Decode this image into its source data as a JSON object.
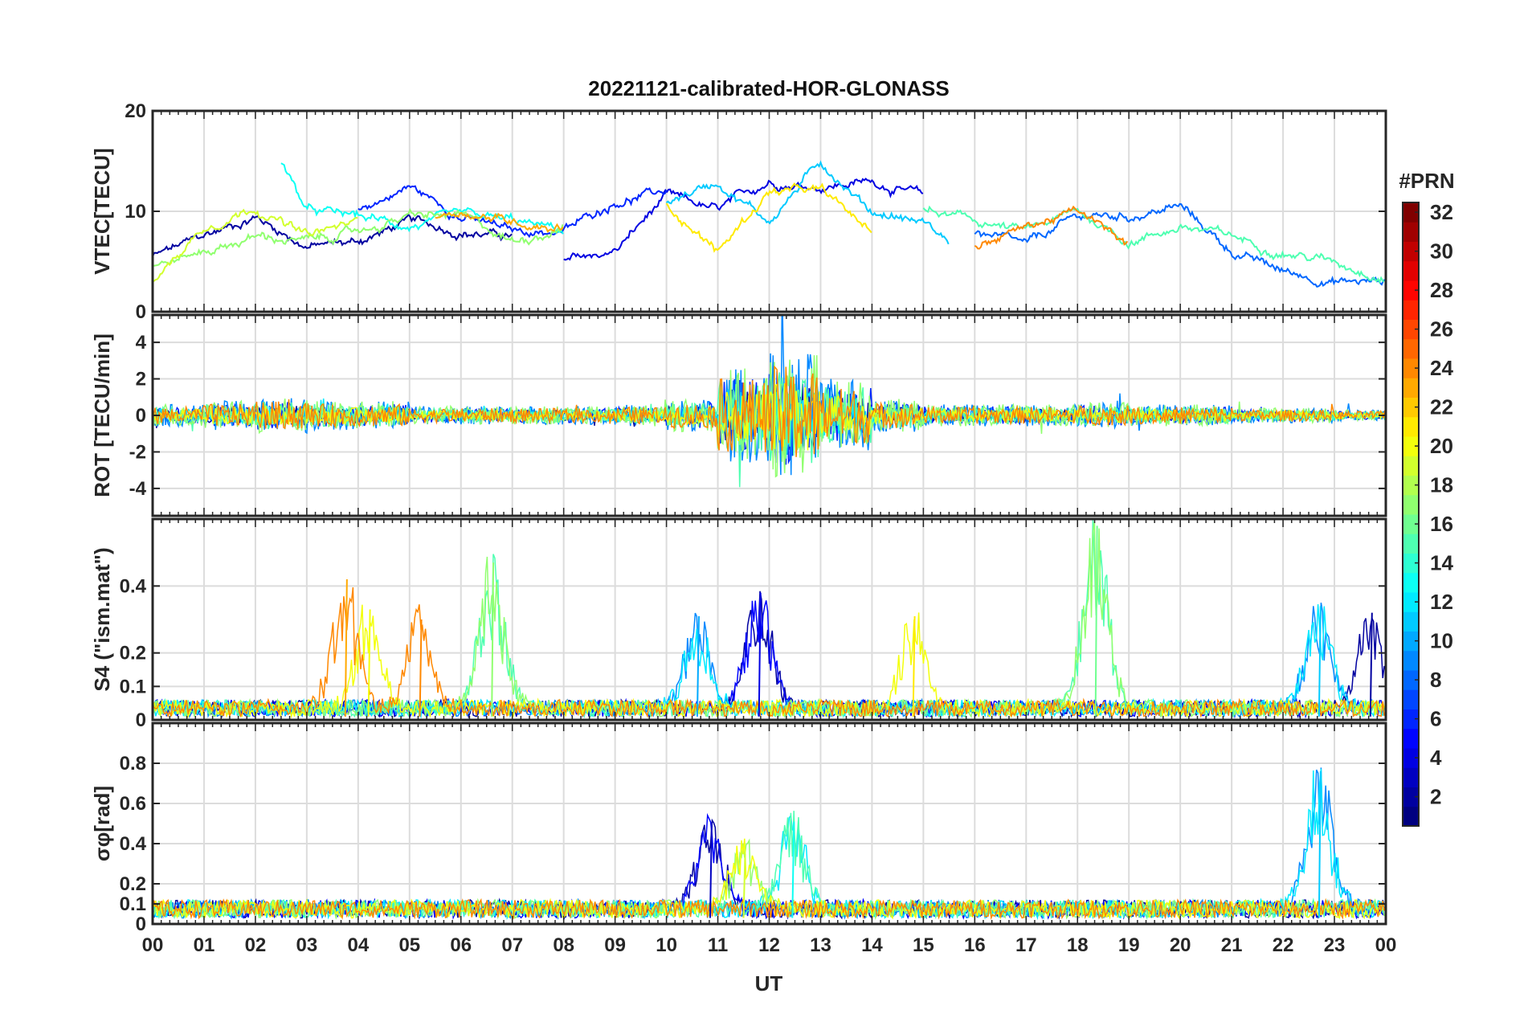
{
  "title": "20221121-calibrated-HOR-GLONASS",
  "colorbar": {
    "title": "#PRN",
    "ticks": [
      "2",
      "4",
      "6",
      "8",
      "10",
      "12",
      "14",
      "16",
      "18",
      "20",
      "22",
      "24",
      "26",
      "28",
      "30",
      "32"
    ],
    "range": [
      1,
      32
    ],
    "colormap": "jet"
  },
  "chart_data": [
    {
      "type": "line",
      "panel": "vtec",
      "ylabel": "VTEC[TECU]",
      "ylim": [
        0,
        20
      ],
      "yticks": [
        "0",
        "10",
        "20"
      ],
      "grid": true,
      "x_unit": "UT hours",
      "xlim": [
        0,
        24
      ],
      "series": [
        {
          "prn": 2,
          "x": [
            0,
            1,
            2,
            3,
            4,
            5,
            6,
            7
          ],
          "y": [
            5.5,
            7.5,
            9.5,
            6.5,
            7.0,
            9.0,
            8.0,
            7.5
          ]
        },
        {
          "prn": 4,
          "x": [
            8,
            9,
            10,
            11,
            12,
            13,
            14,
            15
          ],
          "y": [
            5.0,
            6.0,
            11.5,
            10.0,
            13.0,
            12.5,
            13.0,
            11.5
          ]
        },
        {
          "prn": 6,
          "x": [
            4,
            5,
            6,
            7,
            8,
            9,
            10
          ],
          "y": [
            10.0,
            12.5,
            9.5,
            8.0,
            8.0,
            11.0,
            12.0
          ]
        },
        {
          "prn": 8,
          "x": [
            16,
            17,
            18,
            19,
            20,
            21,
            22,
            23,
            24
          ],
          "y": [
            8.0,
            6.5,
            9.5,
            9.5,
            10.5,
            6.0,
            4.0,
            3.0,
            3.0
          ]
        },
        {
          "prn": 11,
          "x": [
            10,
            11,
            12,
            13,
            14,
            15,
            15.5
          ],
          "y": [
            11.0,
            13.0,
            9.0,
            15.0,
            10.0,
            9.0,
            7.0
          ]
        },
        {
          "prn": 13,
          "x": [
            2.5,
            3,
            4,
            5,
            6,
            7,
            8
          ],
          "y": [
            15.0,
            10.0,
            9.5,
            8.5,
            9.5,
            9.0,
            8.0
          ]
        },
        {
          "prn": 15,
          "x": [
            15,
            16,
            17,
            18,
            19,
            20,
            21,
            22,
            23,
            24
          ],
          "y": [
            10.0,
            9.0,
            8.0,
            10.0,
            7.0,
            8.5,
            7.5,
            6.0,
            5.0,
            3.5
          ]
        },
        {
          "prn": 17,
          "x": [
            0,
            1,
            2,
            3,
            4,
            5,
            6,
            7,
            8
          ],
          "y": [
            4.5,
            6.0,
            7.5,
            7.0,
            8.0,
            9.5,
            9.5,
            7.0,
            8.5
          ]
        },
        {
          "prn": 19,
          "x": [
            0,
            1,
            2,
            3,
            4
          ],
          "y": [
            3.0,
            8.5,
            10.5,
            7.5,
            9.0
          ]
        },
        {
          "prn": 21,
          "x": [
            10,
            11,
            12,
            13,
            14
          ],
          "y": [
            11.0,
            6.0,
            12.0,
            12.0,
            8.0
          ]
        },
        {
          "prn": 23,
          "x": [
            5.5,
            6,
            7,
            8
          ],
          "y": [
            9.5,
            10.0,
            9.0,
            8.5
          ]
        },
        {
          "prn": 24,
          "x": [
            16,
            17,
            18,
            19
          ],
          "y": [
            6.5,
            8.5,
            10.0,
            6.5
          ]
        }
      ]
    },
    {
      "type": "line",
      "panel": "rot",
      "ylabel": "ROT [TECU/min]",
      "ylim": [
        -5.5,
        5.5
      ],
      "yticks": [
        "-4",
        "-2",
        "0",
        "2",
        "4"
      ],
      "grid": true,
      "x_unit": "UT hours",
      "xlim": [
        0,
        24
      ],
      "noise_amplitude_by_hour": [
        0.6,
        0.8,
        1.0,
        0.8,
        0.8,
        0.5,
        0.5,
        0.5,
        0.5,
        0.6,
        0.9,
        2.6,
        3.5,
        2.0,
        0.9,
        0.6,
        0.6,
        0.6,
        0.7,
        0.6,
        0.6,
        0.4,
        0.4,
        0.3,
        0.3
      ]
    },
    {
      "type": "line",
      "panel": "s4",
      "ylabel": "S4 (\"ism.mat\")",
      "ylim": [
        0,
        0.6
      ],
      "yticks": [
        "0",
        "0.1",
        "0.2",
        "0.4"
      ],
      "grid": true,
      "x_unit": "UT hours",
      "xlim": [
        0,
        24
      ],
      "peaks": [
        {
          "prn": 23,
          "x": 3.75,
          "y": 0.42
        },
        {
          "prn": 20,
          "x": 4.2,
          "y": 0.33
        },
        {
          "prn": 24,
          "x": 5.2,
          "y": 0.3
        },
        {
          "prn": 17,
          "x": 6.6,
          "y": 0.47
        },
        {
          "prn": 10,
          "x": 10.6,
          "y": 0.31
        },
        {
          "prn": 4,
          "x": 11.8,
          "y": 0.38
        },
        {
          "prn": 21,
          "x": 14.8,
          "y": 0.31
        },
        {
          "prn": 16,
          "x": 18.35,
          "y": 0.58
        },
        {
          "prn": 11,
          "x": 22.7,
          "y": 0.34
        },
        {
          "prn": 2,
          "x": 23.7,
          "y": 0.32
        }
      ]
    },
    {
      "type": "line",
      "panel": "sigma_phi",
      "ylabel": "σφ[rad]",
      "ylim": [
        0,
        1
      ],
      "yticks": [
        "0",
        "0.1",
        "0.2",
        "0.4",
        "0.6",
        "0.8"
      ],
      "grid": true,
      "x_unit": "UT hours",
      "xlim": [
        0,
        24
      ],
      "peaks": [
        {
          "prn": 3,
          "x": 10.85,
          "y": 0.5
        },
        {
          "prn": 19,
          "x": 11.5,
          "y": 0.35
        },
        {
          "prn": 13,
          "x": 12.45,
          "y": 0.51
        },
        {
          "prn": 11,
          "x": 22.7,
          "y": 0.76
        }
      ]
    }
  ],
  "xaxis": {
    "label": "UT",
    "ticks": [
      "00",
      "01",
      "02",
      "03",
      "04",
      "05",
      "06",
      "07",
      "08",
      "09",
      "10",
      "11",
      "12",
      "13",
      "14",
      "15",
      "16",
      "17",
      "18",
      "19",
      "20",
      "21",
      "22",
      "23",
      "00"
    ]
  }
}
